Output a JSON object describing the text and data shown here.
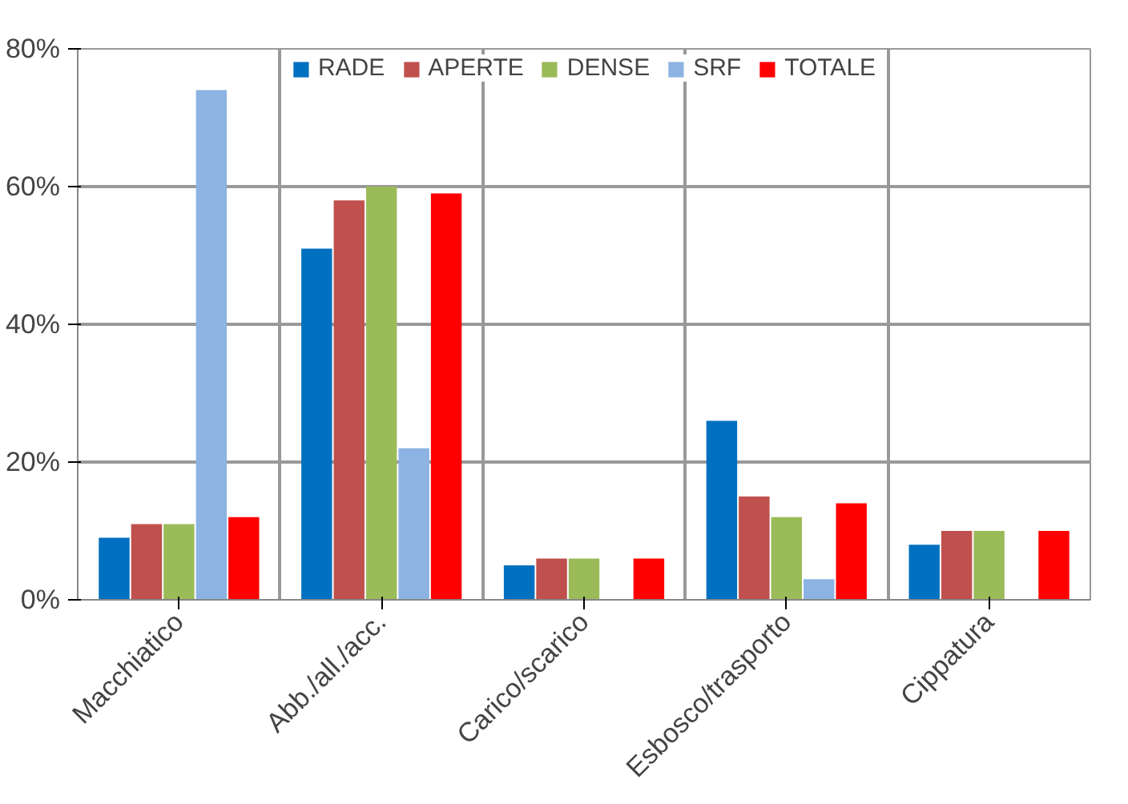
{
  "chart_data": {
    "type": "bar",
    "categories": [
      "Macchiatico",
      "Abb./all./acc.",
      "Carico/scarico",
      "Esbosco/trasporto",
      "Cippatura"
    ],
    "series": [
      {
        "name": "RADE",
        "color": "#0070c0",
        "values": [
          9,
          51,
          5,
          26,
          8
        ]
      },
      {
        "name": "APERTE",
        "color": "#c0504d",
        "values": [
          11,
          58,
          6,
          15,
          10
        ]
      },
      {
        "name": "DENSE",
        "color": "#9bbb59",
        "values": [
          11,
          60,
          6,
          12,
          10
        ]
      },
      {
        "name": "SRF",
        "color": "#8db3e2",
        "values": [
          74,
          22,
          0,
          3,
          0
        ]
      },
      {
        "name": "TOTALE",
        "color": "#ff0000",
        "values": [
          12,
          59,
          6,
          14,
          10
        ]
      }
    ],
    "ylim": [
      0,
      80
    ],
    "yticks": [
      {
        "value": 0,
        "label": "0%"
      },
      {
        "value": 20,
        "label": "20%"
      },
      {
        "value": 40,
        "label": "40%"
      },
      {
        "value": 60,
        "label": "60%"
      },
      {
        "value": 80,
        "label": "80%"
      }
    ],
    "grid": true,
    "legend": "top"
  }
}
